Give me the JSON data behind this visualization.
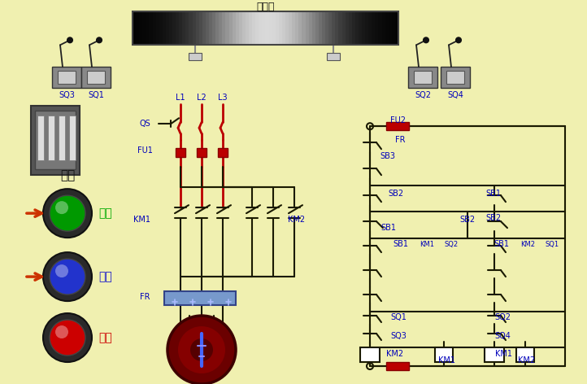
{
  "bg_color": "#f0f0b0",
  "lc": "#1a1a00",
  "rc": "#bb0000",
  "lbl": "#0000bb",
  "workbench_label": "工作台",
  "power_label": "电源",
  "fwd_label": "正转",
  "rev_label": "反转",
  "stop_label": "停止"
}
